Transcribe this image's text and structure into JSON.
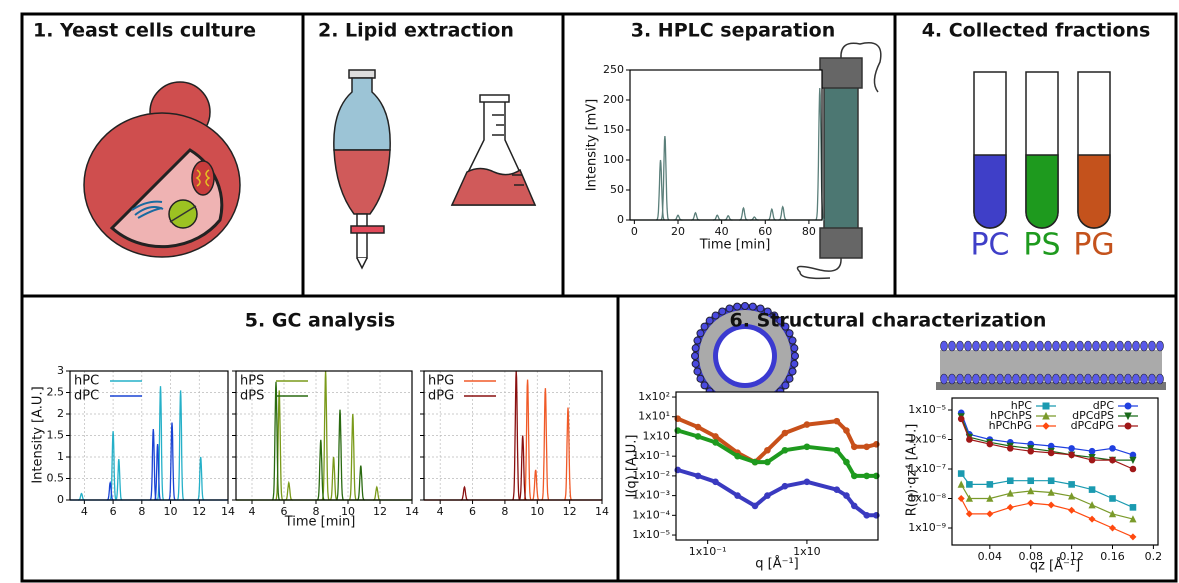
{
  "panels": {
    "culture": {
      "title": "1. Yeast cells culture"
    },
    "extraction": {
      "title": "2. Lipid extraction"
    },
    "hplc": {
      "title": "3. HPLC separation",
      "chart": {
        "type": "peaks",
        "xlabel": "Time [min]",
        "ylabel": "Intensity [mV]",
        "xlim": [
          -2,
          86
        ],
        "ylim": [
          0,
          250
        ],
        "xticks": [
          0,
          20,
          40,
          60,
          80
        ],
        "yticks": [
          0,
          50,
          100,
          150,
          200,
          250
        ],
        "series": [
          {
            "color": "#5b7f7a",
            "peak_times": [
              12,
              14,
              20,
              28,
              38,
              43,
              50,
              55,
              63,
              68,
              85
            ],
            "peak_heights": [
              100,
              140,
              8,
              12,
              8,
              7,
              20,
              5,
              18,
              22,
              220
            ]
          }
        ]
      }
    },
    "fractions": {
      "title": "4. Collected fractions",
      "tubes": [
        {
          "label": "PC",
          "color": "#3f3fc8"
        },
        {
          "label": "PS",
          "color": "#1e9a1e"
        },
        {
          "label": "PG",
          "color": "#c4521c"
        }
      ]
    },
    "gc": {
      "title": "5. GC analysis",
      "type": "peaks",
      "xlabel": "Time [min]",
      "ylabel": "Intensity [A.U.]",
      "xlim": [
        3,
        14
      ],
      "ylim": [
        0,
        3
      ],
      "xticks": [
        4,
        6,
        8,
        10,
        12,
        14
      ],
      "yticks": [
        0,
        0.5,
        1,
        1.5,
        2,
        2.5,
        3
      ],
      "grid": true,
      "legend": "upper left",
      "charts": [
        {
          "series": [
            {
              "name": "hPC",
              "color": "#25b0c8",
              "peak_times": [
                3.8,
                6,
                6.4,
                9.3,
                10.7,
                12.1
              ],
              "peak_heights": [
                0.15,
                1.6,
                0.95,
                2.65,
                2.55,
                1.0
              ]
            },
            {
              "name": "dPC",
              "color": "#1a44d4",
              "peak_times": [
                5.8,
                8.8,
                9.1,
                10.1
              ],
              "peak_heights": [
                0.4,
                1.65,
                1.3,
                1.8
              ]
            }
          ]
        },
        {
          "series": [
            {
              "name": "hPS",
              "color": "#7a9a1a",
              "peak_times": [
                5.7,
                6.3,
                8.6,
                9.1,
                10.3,
                11.8
              ],
              "peak_heights": [
                2.55,
                0.4,
                3.0,
                1.0,
                2.0,
                0.3
              ]
            },
            {
              "name": "dPS",
              "color": "#2a6a10",
              "peak_times": [
                5.5,
                8.3,
                9.5,
                10.8
              ],
              "peak_heights": [
                2.75,
                1.4,
                2.1,
                0.8
              ]
            }
          ]
        },
        {
          "series": [
            {
              "name": "hPG",
              "color": "#f05a28",
              "peak_times": [
                9.4,
                9.9,
                10.5,
                11.9
              ],
              "peak_heights": [
                2.8,
                0.7,
                2.6,
                2.15
              ]
            },
            {
              "name": "dPG",
              "color": "#8a1010",
              "peak_times": [
                5.5,
                8.7,
                9.1
              ],
              "peak_heights": [
                0.3,
                3.0,
                1.5
              ]
            }
          ]
        }
      ]
    },
    "structure": {
      "title": "6. Structural characterization",
      "charts": [
        {
          "type": "line",
          "xlabel": "q [Å⁻¹]",
          "ylabel": "I(q) [A.U.]",
          "xlog": true,
          "ylog": true,
          "xlim": [
            0.048,
            5.2
          ],
          "ylim": [
            5.6e-06,
            180
          ],
          "xticks": [
            {
              "value": 0.1,
              "label": "1x10⁻¹"
            },
            {
              "value": 1,
              "label": "1x10"
            }
          ],
          "yticks": [
            {
              "value": 100,
              "label": "1x10²"
            },
            {
              "value": 10,
              "label": "1x10¹"
            },
            {
              "value": 1,
              "label": "1x10"
            },
            {
              "value": 0.1,
              "label": "1x10⁻¹"
            },
            {
              "value": 0.01,
              "label": "1x10⁻²"
            },
            {
              "value": 0.001,
              "label": "1x10⁻³"
            },
            {
              "value": 0.0001,
              "label": "1x10⁻⁴"
            },
            {
              "value": 1e-05,
              "label": "1x10⁻⁵"
            }
          ],
          "x": [
            0.05,
            0.08,
            0.12,
            0.2,
            0.3,
            0.4,
            0.6,
            1,
            2,
            2.5,
            3,
            4,
            5
          ],
          "series": [
            {
              "color": "#c8501a",
              "marker": "circle",
              "values": [
                8,
                3,
                1,
                0.15,
                0.05,
                0.2,
                1.5,
                4,
                6,
                2,
                0.3,
                0.3,
                0.4
              ]
            },
            {
              "color": "#1e9a1e",
              "marker": "circle",
              "values": [
                2,
                1,
                0.5,
                0.1,
                0.05,
                0.05,
                0.2,
                0.3,
                0.2,
                0.05,
                0.01,
                0.01,
                0.01
              ]
            },
            {
              "color": "#3a3ac0",
              "marker": "circle",
              "values": [
                0.02,
                0.01,
                0.005,
                0.001,
                0.0003,
                0.001,
                0.003,
                0.005,
                0.002,
                0.001,
                0.0003,
                0.0001,
                0.0001
              ]
            }
          ]
        },
        {
          "type": "line",
          "xlabel": "qz [Å⁻¹]",
          "ylabel": "R(q)·qz⁴ [A.U.]",
          "ylog": true,
          "xlim": [
            0.003,
            0.2045
          ],
          "ylim": [
            2.65e-10,
            2.55e-05
          ],
          "xticks": [
            0.04,
            0.08,
            0.12,
            0.16,
            0.2
          ],
          "yticks": [
            {
              "value": 1e-05,
              "label": "1x10⁻⁵"
            },
            {
              "value": 1e-06,
              "label": "1x10⁻⁶"
            },
            {
              "value": 1e-07,
              "label": "1x10⁻⁷"
            },
            {
              "value": 1e-08,
              "label": "1x10⁻⁸"
            },
            {
              "value": 1e-09,
              "label": "1x10⁻⁹"
            }
          ],
          "legend": "upper center",
          "x": [
            0.012,
            0.02,
            0.04,
            0.06,
            0.08,
            0.1,
            0.12,
            0.14,
            0.16,
            0.18
          ],
          "series": [
            {
              "name": "hPC",
              "color": "#1a9ab0",
              "marker": "square",
              "values": [
                7e-08,
                3e-08,
                3e-08,
                4e-08,
                4e-08,
                4e-08,
                3e-08,
                2e-08,
                1e-08,
                5e-09
              ]
            },
            {
              "name": "dPC",
              "color": "#2040e0",
              "marker": "circle",
              "values": [
                8e-06,
                1.5e-06,
                1e-06,
                8e-07,
                7e-07,
                6e-07,
                5e-07,
                4e-07,
                5e-07,
                3e-07
              ]
            },
            {
              "name": "hPChPS",
              "color": "#7a9a2a",
              "marker": "triangle-up",
              "values": [
                3e-08,
                1e-08,
                1e-08,
                1.5e-08,
                1.8e-08,
                1.6e-08,
                1.2e-08,
                6e-09,
                3e-09,
                2e-09
              ]
            },
            {
              "name": "dPCdPS",
              "color": "#1a6a1a",
              "marker": "triangle-down",
              "values": [
                6e-06,
                1.2e-06,
                8e-07,
                6e-07,
                5e-07,
                4e-07,
                3e-07,
                2.5e-07,
                2e-07,
                2e-07
              ]
            },
            {
              "name": "hPChPG",
              "color": "#ff4a10",
              "marker": "diamond",
              "values": [
                1e-08,
                3e-09,
                3e-09,
                5e-09,
                7e-09,
                6e-09,
                4e-09,
                2e-09,
                1e-09,
                5e-10
              ]
            },
            {
              "name": "dPCdPG",
              "color": "#a01818",
              "marker": "circle",
              "values": [
                5e-06,
                1e-06,
                7e-07,
                5e-07,
                4e-07,
                3.5e-07,
                3e-07,
                2e-07,
                2e-07,
                1e-07
              ]
            }
          ]
        }
      ]
    }
  }
}
